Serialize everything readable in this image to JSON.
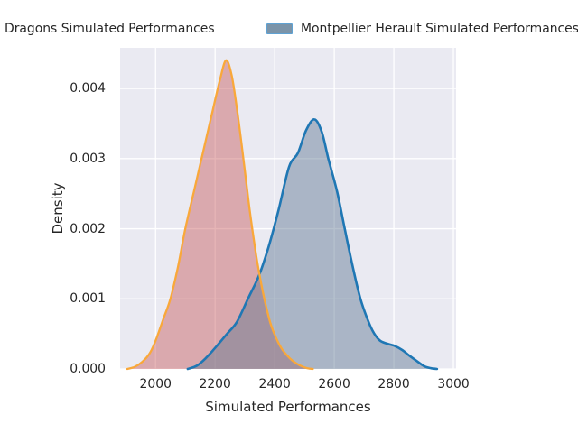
{
  "figure": {
    "background": "#FFFFFF",
    "axes_background": "#EAEAF2",
    "grid_color": "#FFFFFF",
    "text_color": "#262626"
  },
  "legend": {
    "items": [
      {
        "label": "Dragons Simulated Performances",
        "swatch_visible": false
      },
      {
        "label": "Montpellier Herault Simulated Performances",
        "swatch_visible": true,
        "swatch_fill": "#7B94A9",
        "swatch_edge": "#5FA2D3"
      }
    ]
  },
  "chart_data": {
    "type": "area",
    "subtype": "kde-density",
    "title": "",
    "xlabel": "Simulated Performances",
    "ylabel": "Density",
    "xticks": [
      2000,
      2200,
      2400,
      2600,
      2800,
      3000
    ],
    "ytick_values": [
      0,
      0.001,
      0.002,
      0.003,
      0.004
    ],
    "ytick_labels": [
      "0.000",
      "0.001",
      "0.002",
      "0.003",
      "0.004"
    ],
    "xlim": [
      1881,
      3009
    ],
    "ylim": [
      0,
      0.00458
    ],
    "grid": true,
    "legend_position": "top, single row, clipped at left and right figure edges",
    "series": [
      {
        "name": "Dragons Simulated Performances",
        "line_color": "#F9A83A",
        "fill_color": "rgba(196,78,82,0.42)",
        "peak": {
          "x": 2236,
          "density": 0.0044
        },
        "points": [
          [
            1905,
            0
          ],
          [
            1930,
            3e-05
          ],
          [
            1955,
            0.0001
          ],
          [
            1980,
            0.00022
          ],
          [
            2000,
            0.0004
          ],
          [
            2025,
            0.0007
          ],
          [
            2050,
            0.001
          ],
          [
            2075,
            0.00145
          ],
          [
            2100,
            0.002
          ],
          [
            2130,
            0.00255
          ],
          [
            2160,
            0.0031
          ],
          [
            2190,
            0.00365
          ],
          [
            2215,
            0.0041
          ],
          [
            2236,
            0.0044
          ],
          [
            2255,
            0.0042
          ],
          [
            2272,
            0.00375
          ],
          [
            2292,
            0.0031
          ],
          [
            2315,
            0.0023
          ],
          [
            2335,
            0.0017
          ],
          [
            2350,
            0.00132
          ],
          [
            2368,
            0.00095
          ],
          [
            2386,
            0.00065
          ],
          [
            2405,
            0.00044
          ],
          [
            2422,
            0.0003
          ],
          [
            2440,
            0.0002
          ],
          [
            2462,
            0.00011
          ],
          [
            2485,
            5e-05
          ],
          [
            2510,
            1e-05
          ],
          [
            2528,
            0
          ]
        ]
      },
      {
        "name": "Montpellier Herault Simulated Performances",
        "line_color": "#1F77B4",
        "fill_color": "rgba(94,117,144,0.45)",
        "peak": {
          "x": 2533,
          "density": 0.00356
        },
        "points": [
          [
            2108,
            0
          ],
          [
            2140,
            5e-05
          ],
          [
            2170,
            0.00016
          ],
          [
            2200,
            0.0003
          ],
          [
            2240,
            0.0005
          ],
          [
            2273,
            0.00067
          ],
          [
            2310,
            0.001
          ],
          [
            2348,
            0.00134
          ],
          [
            2380,
            0.00175
          ],
          [
            2412,
            0.00225
          ],
          [
            2448,
            0.00288
          ],
          [
            2478,
            0.00308
          ],
          [
            2505,
            0.0034
          ],
          [
            2533,
            0.00356
          ],
          [
            2558,
            0.00338
          ],
          [
            2580,
            0.003
          ],
          [
            2610,
            0.00252
          ],
          [
            2635,
            0.002
          ],
          [
            2666,
            0.00138
          ],
          [
            2688,
            0.001
          ],
          [
            2708,
            0.00075
          ],
          [
            2728,
            0.00055
          ],
          [
            2752,
            0.00041
          ],
          [
            2778,
            0.00036
          ],
          [
            2802,
            0.00033
          ],
          [
            2828,
            0.00027
          ],
          [
            2852,
            0.00019
          ],
          [
            2878,
            0.00011
          ],
          [
            2902,
            4e-05
          ],
          [
            2925,
            1e-05
          ],
          [
            2945,
            0
          ]
        ]
      }
    ]
  }
}
